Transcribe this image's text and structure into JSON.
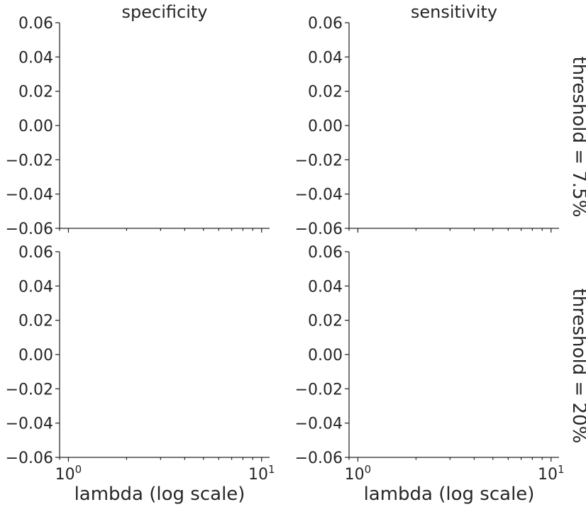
{
  "chart_data": {
    "type": "line",
    "layout": "facet-grid",
    "columns": [
      "specificity",
      "sensitivity"
    ],
    "rows": [
      "threshold = 7.5%",
      "threshold = 20%"
    ],
    "xlabel": "lambda (log scale)",
    "xscale": "log",
    "xlim": [
      0.9,
      11
    ],
    "x_major_ticks": [
      1,
      10
    ],
    "x_tick_labels": [
      {
        "base": "10",
        "exp": "0"
      },
      {
        "base": "10",
        "exp": "1"
      }
    ],
    "ylim": [
      -0.06,
      0.06
    ],
    "y_ticks": [
      0.06,
      0.04,
      0.02,
      0.0,
      -0.02,
      -0.04,
      -0.06
    ],
    "y_tick_labels": [
      "0.06",
      "0.04",
      "0.02",
      "0.00",
      "−0.02",
      "−0.04",
      "−0.06"
    ],
    "grid": false,
    "series": []
  }
}
